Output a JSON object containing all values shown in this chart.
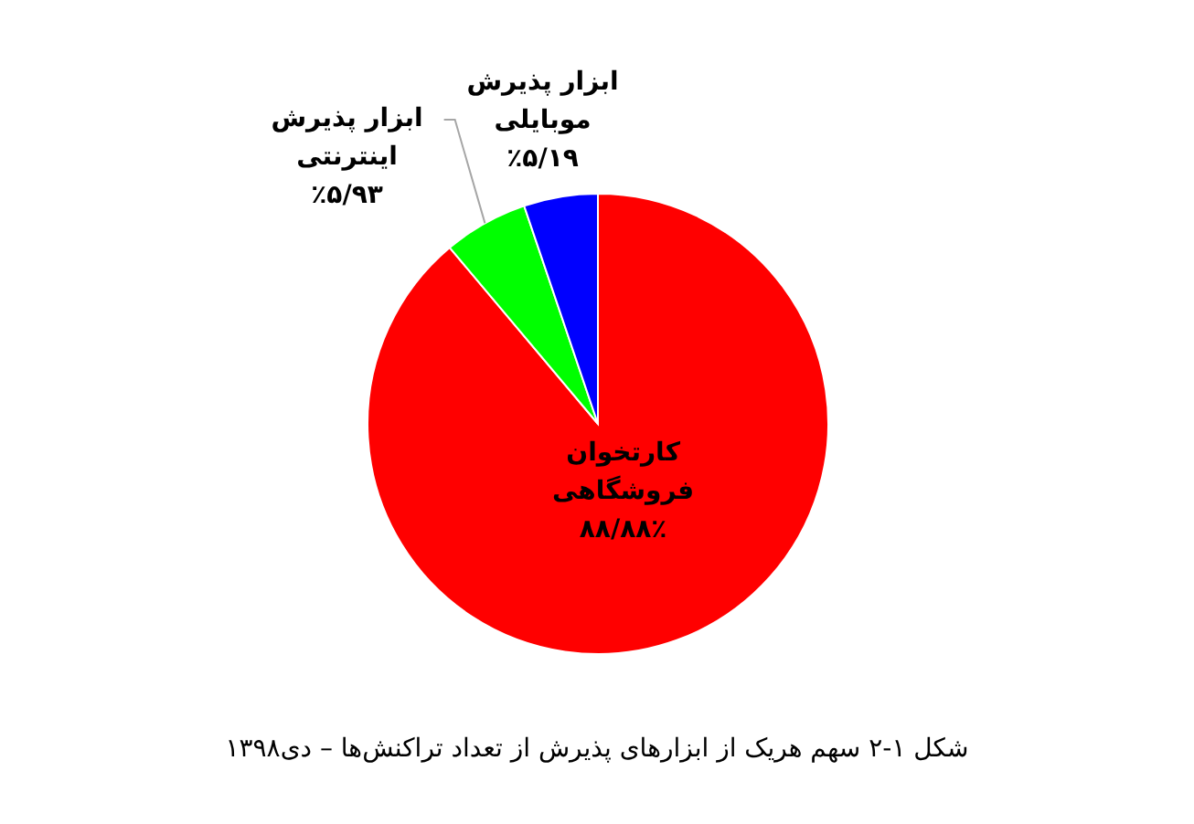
{
  "chart_data": {
    "type": "pie",
    "title": "شکل ۱-۲ سهم هریک از ابزارهای پذیرش از تعداد تراکنش‌ها – دی۱۳۹۸",
    "categories": [
      "کارتخوان فروشگاهی",
      "ابزار پذیرش اینترنتی",
      "ابزار پذیرش موبایلی"
    ],
    "values": [
      88.88,
      5.93,
      5.19
    ],
    "colors": [
      "#ff0000",
      "#00ff00",
      "#0000ff"
    ],
    "value_labels": [
      "۸۸/۸۸٪",
      "٪۵/۹۳",
      "٪۵/۱۹"
    ]
  }
}
